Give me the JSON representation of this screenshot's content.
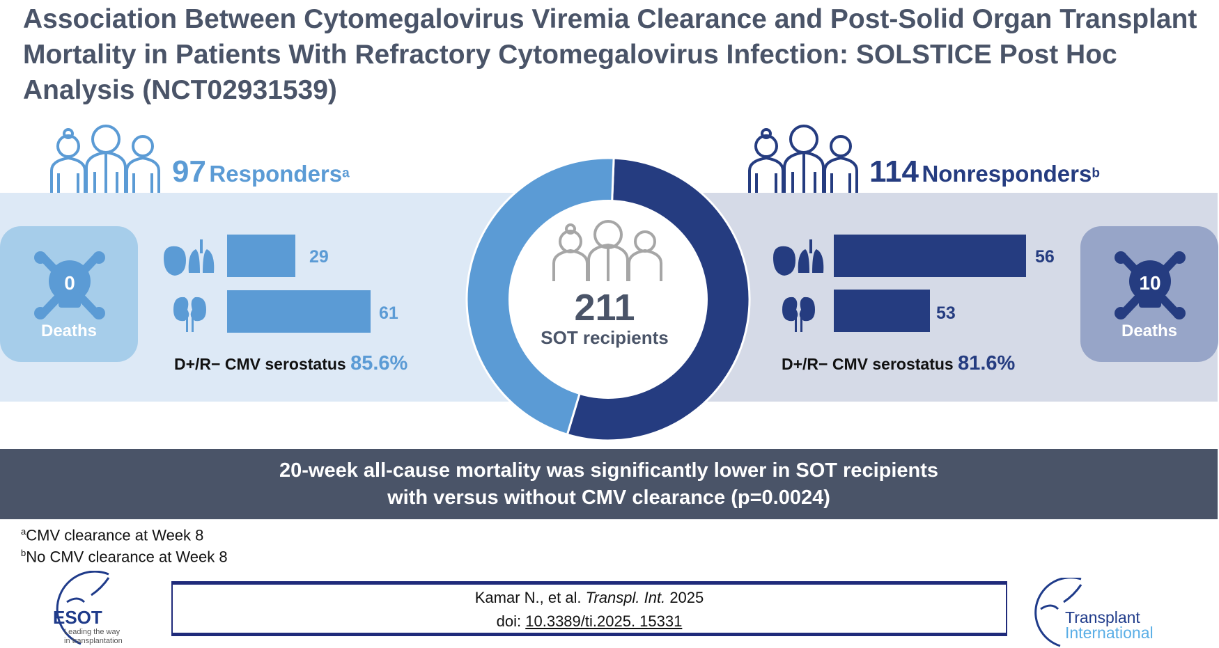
{
  "title": "Association Between Cytomegalovirus Viremia Clearance and Post-Solid Organ Transplant Mortality in Patients With Refractory Cytomegalovirus Infection: SOLSTICE Post Hoc Analysis (NCT02931539)",
  "colors": {
    "responders": "#5b9bd5",
    "nonresponders": "#253c80",
    "title": "#4a5468"
  },
  "responders": {
    "count": "97",
    "label": "Responders",
    "sup": "a",
    "deaths": "0",
    "deaths_label": "Deaths",
    "heart_lung": "29",
    "kidney": "61",
    "serostatus_label": "D+/R− CMV serostatus",
    "serostatus_value": "85.6%"
  },
  "nonresponders": {
    "count": "114",
    "label": "Nonresponders",
    "sup": "b",
    "deaths": "10",
    "deaths_label": "Deaths",
    "heart_lung": "56",
    "kidney": "53",
    "serostatus_label": "D+/R− CMV serostatus",
    "serostatus_value": "81.6%"
  },
  "total": {
    "count": "211",
    "label": "SOT recipients"
  },
  "donut": {
    "responders": 97,
    "nonresponders": 114
  },
  "banner": {
    "line1": "20-week all-cause mortality was significantly lower in SOT recipients",
    "line2": "with versus without CMV clearance (p=0.0024)"
  },
  "footnotes": [
    {
      "sup": "a",
      "text": "CMV clearance at Week 8"
    },
    {
      "sup": "b",
      "text": "No CMV clearance at Week 8"
    }
  ],
  "citation": {
    "authors": "Kamar N., et al. ",
    "journal": "Transpl. Int.",
    "year": " 2025",
    "doi_label": "doi: ",
    "doi": "10.3389/ti.2025. 15331"
  },
  "logos": {
    "esot": "ESOT",
    "esot_tag1": "Leading the way",
    "esot_tag2": "in transplantation",
    "ti1": "Transplant",
    "ti2": "International"
  }
}
